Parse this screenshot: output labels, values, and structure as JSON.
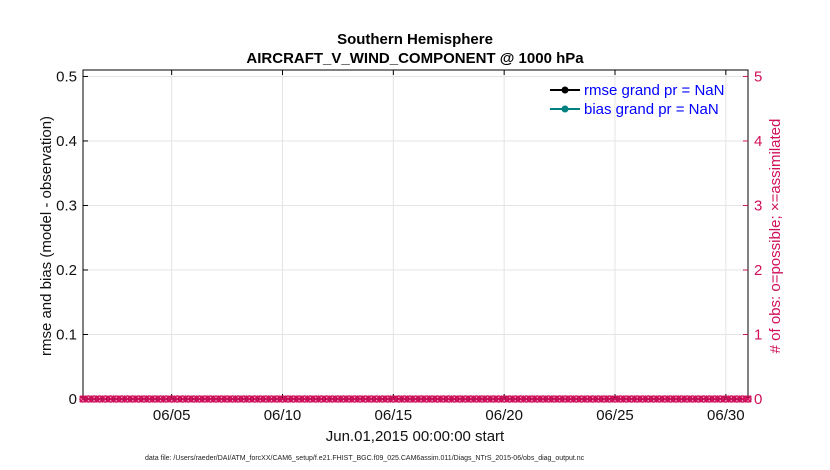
{
  "chart_data": {
    "type": "line",
    "title": "Southern Hemisphere",
    "subtitle": "AIRCRAFT_V_WIND_COMPONENT @ 1000 hPa",
    "xlabel": "Jun.01,2015 00:00:00 start",
    "ylabel": "rmse and bias (model - observation)",
    "ylabel_right": "# of obs: o=possible; ×=assimilated",
    "ylim": [
      0,
      0.51
    ],
    "ylim_right": [
      0,
      5.1
    ],
    "xlim": [
      "2015-06-01",
      "2015-07-01"
    ],
    "x_tick_labels": [
      "06/05",
      "06/10",
      "06/15",
      "06/20",
      "06/25",
      "06/30"
    ],
    "x_tick_days": [
      5,
      10,
      15,
      20,
      25,
      30
    ],
    "y_tick_labels": [
      "0",
      "0.1",
      "0.2",
      "0.3",
      "0.4",
      "0.5"
    ],
    "y_ticks": [
      0,
      0.1,
      0.2,
      0.3,
      0.4,
      0.5
    ],
    "y_right_tick_labels": [
      "0",
      "1",
      "2",
      "3",
      "4",
      "5"
    ],
    "y_right_ticks": [
      0,
      1,
      2,
      3,
      4,
      5
    ],
    "grid": true,
    "legend_position": "top-right",
    "series": [
      {
        "name": "rmse grand pr = NaN",
        "color": "#000000",
        "values": []
      },
      {
        "name": "bias grand pr = NaN",
        "color": "#008080",
        "values": []
      }
    ],
    "obs_counts": {
      "color": "#d0105a",
      "start_day": 1,
      "step_days": 0.25,
      "num_points": 121,
      "possible": 0,
      "assimilated": 0
    },
    "footnote": "data file: /Users/raeder/DAI/ATM_forcXX/CAM6_setup/f.e21.FHIST_BGC.f09_025.CAM6assim.011/Diags_NTrS_2015-06/obs_diag_output.nc"
  }
}
